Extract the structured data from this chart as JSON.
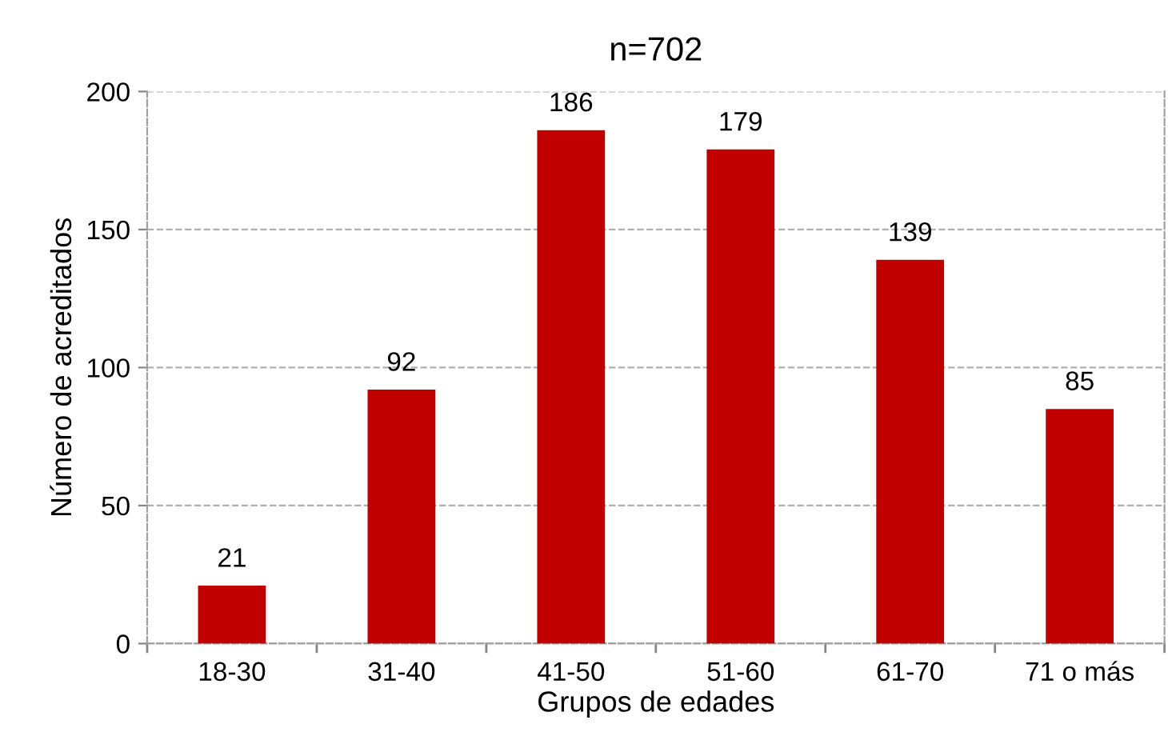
{
  "chart_data": {
    "type": "bar",
    "title": "n=702",
    "xlabel": "Grupos de edades",
    "ylabel": "Número de acreditados",
    "categories": [
      "18-30",
      "31-40",
      "41-50",
      "51-60",
      "61-70",
      "71 o más"
    ],
    "values": [
      21,
      92,
      186,
      179,
      139,
      85
    ],
    "color": "#c00000",
    "ylim": [
      0,
      200
    ],
    "yticks": [
      0,
      50,
      100,
      150,
      200
    ],
    "grid": "y",
    "data_labels": true
  }
}
